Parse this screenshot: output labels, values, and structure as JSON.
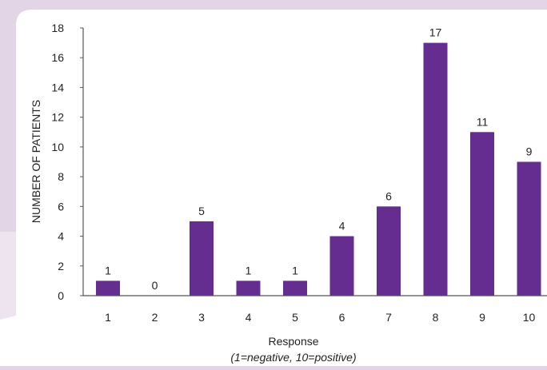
{
  "chart_data": {
    "type": "bar",
    "categories": [
      "1",
      "2",
      "3",
      "4",
      "5",
      "6",
      "7",
      "8",
      "9",
      "10"
    ],
    "values": [
      1,
      0,
      5,
      1,
      1,
      4,
      6,
      17,
      11,
      9
    ],
    "data_labels": [
      "1",
      "0",
      "5",
      "1",
      "1",
      "4",
      "6",
      "17",
      "11",
      "9"
    ],
    "ylabel": "NUMBER OF PATIENTS",
    "xlabel": "Response",
    "xlabel_sub": "(1=negative, 10=positive)",
    "ylim": [
      0,
      18
    ],
    "yticks": [
      "0",
      "2",
      "4",
      "6",
      "8",
      "10",
      "12",
      "14",
      "16",
      "18"
    ],
    "grid": false,
    "bar_color": "#652d90"
  }
}
